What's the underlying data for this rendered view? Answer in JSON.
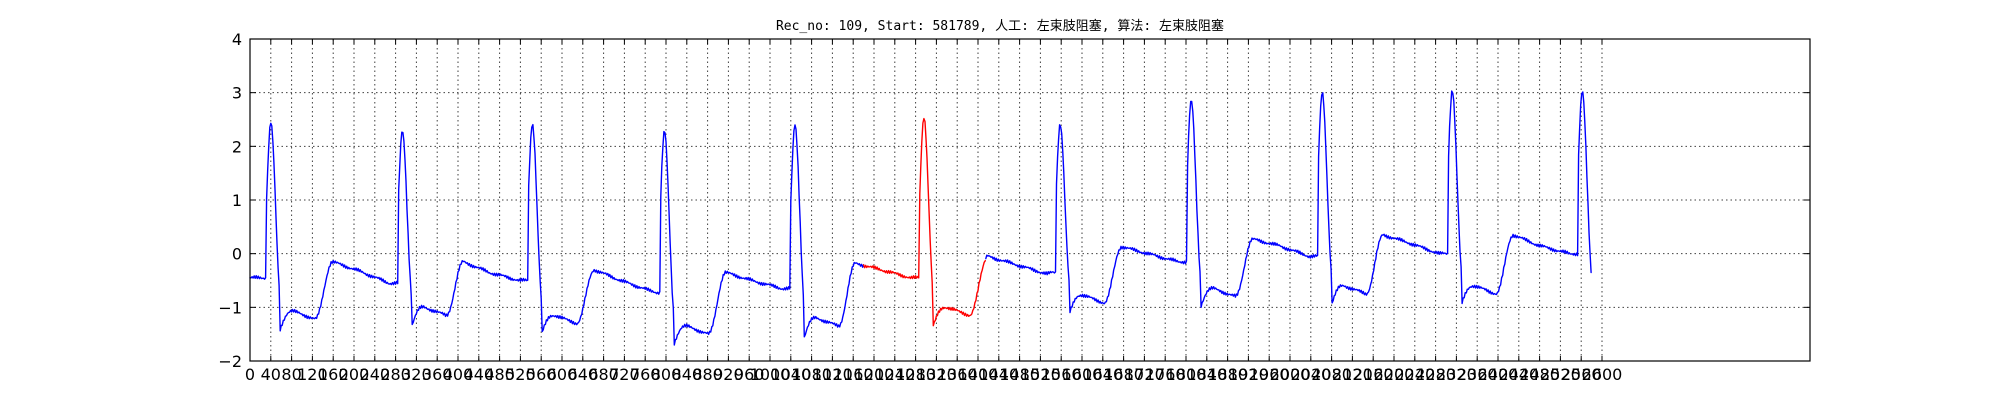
{
  "chart_data": {
    "type": "line",
    "title": "Rec_no: 109, Start: 581789, 人工: 左束肢阻塞, 算法: 左束肢阻塞",
    "xlabel": "",
    "ylabel": "",
    "xlim": [
      0,
      3000
    ],
    "ylim": [
      -2,
      4
    ],
    "grid": true,
    "x_ticks": [
      0,
      40,
      80,
      120,
      160,
      200,
      240,
      280,
      320,
      360,
      400,
      440,
      480,
      520,
      560,
      600,
      640,
      680,
      720,
      760,
      800,
      840,
      880,
      920,
      960,
      1000,
      1040,
      1080,
      1120,
      1160,
      1200,
      1240,
      1280,
      1320,
      1360,
      1400,
      1440,
      1480,
      1520,
      1560,
      1600,
      1640,
      1680,
      1720,
      1760,
      1800,
      1840,
      1880,
      1920,
      1960,
      2000,
      2040,
      2080,
      2120,
      2160,
      2200,
      2240,
      2280,
      2320,
      2360,
      2400,
      2440,
      2480,
      2520,
      2560,
      2600
    ],
    "x_tick_labels": [
      "0",
      "40",
      "80",
      "120",
      "160",
      "200",
      "240",
      "280",
      "320",
      "360",
      "400",
      "440",
      "480",
      "520",
      "560",
      "600",
      "640",
      "680",
      "720",
      "760",
      "800",
      "840",
      "880",
      "920",
      "960",
      "1000",
      "1040",
      "1080",
      "1120",
      "1160",
      "1200",
      "1240",
      "1280",
      "1320",
      "1360",
      "1400",
      "1440",
      "1480",
      "1520",
      "1560",
      "1600",
      "1640",
      "1680",
      "1720",
      "1760",
      "1800",
      "1840",
      "1880",
      "1920",
      "1960",
      "2000",
      "2040",
      "2080",
      "2120",
      "2160",
      "2200",
      "2240",
      "2280",
      "2320",
      "2360",
      "2400",
      "2440",
      "2480",
      "2520",
      "2560",
      "2600"
    ],
    "y_ticks": [
      -2,
      -1,
      0,
      1,
      2,
      3,
      4
    ],
    "y_tick_labels": [
      "−2",
      "−1",
      "0",
      "1",
      "2",
      "3",
      "4"
    ],
    "beats": [
      {
        "r_x": 40,
        "r_peak": 2.45,
        "s_min": -1.42,
        "baseline": -0.45,
        "t_peak": -0.15,
        "st": -0.32,
        "end_level": -0.55
      },
      {
        "r_x": 293,
        "r_peak": 2.28,
        "s_min": -1.35,
        "baseline": -0.55,
        "t_peak": -0.15,
        "st": -0.35,
        "end_level": -0.5
      },
      {
        "r_x": 543,
        "r_peak": 2.42,
        "s_min": -1.5,
        "baseline": -0.5,
        "t_peak": -0.3,
        "st": -0.5,
        "end_level": -0.7
      },
      {
        "r_x": 797,
        "r_peak": 2.28,
        "s_min": -1.7,
        "baseline": -0.72,
        "t_peak": -0.35,
        "st": -0.5,
        "end_level": -0.65
      },
      {
        "r_x": 1048,
        "r_peak": 2.4,
        "s_min": -1.55,
        "baseline": -0.65,
        "t_peak": -0.18,
        "st": -0.3,
        "end_level": -0.45
      },
      {
        "r_x": 1296,
        "r_peak": 2.55,
        "s_min": -1.35,
        "baseline": -0.45,
        "t_peak": -0.05,
        "st": -0.2,
        "end_level": -0.38
      },
      {
        "r_x": 1558,
        "r_peak": 2.42,
        "s_min": -1.12,
        "baseline": -0.35,
        "t_peak": 0.13,
        "st": 0.0,
        "end_level": -0.15
      },
      {
        "r_x": 1810,
        "r_peak": 2.85,
        "s_min": -1.0,
        "baseline": -0.15,
        "t_peak": 0.27,
        "st": 0.15,
        "end_level": -0.05
      },
      {
        "r_x": 2062,
        "r_peak": 3.0,
        "s_min": -0.95,
        "baseline": -0.05,
        "t_peak": 0.35,
        "st": 0.2,
        "end_level": 0.0
      },
      {
        "r_x": 2312,
        "r_peak": 3.05,
        "s_min": -0.95,
        "baseline": 0.0,
        "t_peak": 0.35,
        "st": 0.15,
        "end_level": 0.0
      },
      {
        "r_x": 2562,
        "r_peak": 3.02,
        "s_min": -1.0,
        "baseline": 0.0,
        "t_peak": null,
        "st": null,
        "end_level": null
      }
    ],
    "series": [
      {
        "color": "#0000ff",
        "x_range": [
          0,
          1180
        ]
      },
      {
        "color": "#ff0000",
        "x_range": [
          1180,
          1415
        ]
      },
      {
        "color": "#0000ff",
        "x_range": [
          1415,
          2580
        ]
      }
    ]
  }
}
